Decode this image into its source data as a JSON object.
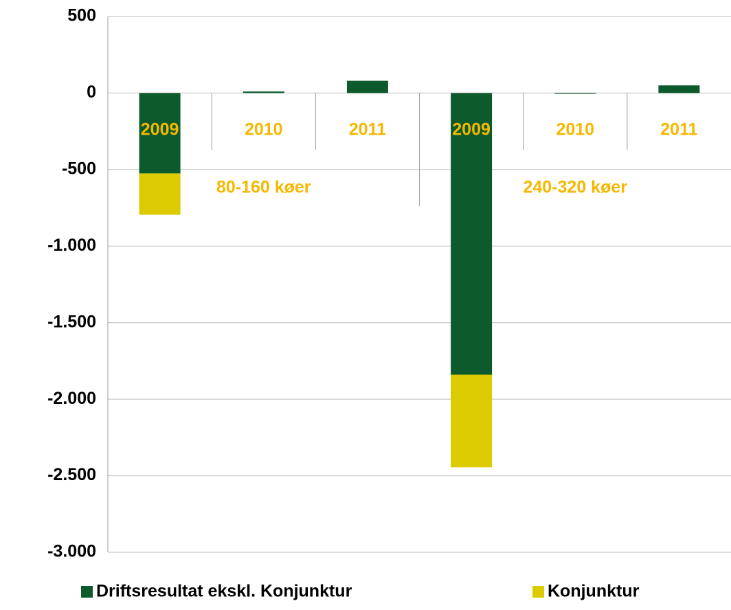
{
  "chart_data": {
    "type": "stacked_bar",
    "categories": [
      "2009",
      "2010",
      "2011",
      "2009",
      "2010",
      "2011"
    ],
    "groups": [
      {
        "name": "80-160 køer"
      },
      {
        "name": "240-320 køer"
      }
    ],
    "series": [
      {
        "name": "Driftsresultat ekskl. Konjunktur",
        "color": "#0d5a2c",
        "values": [
          -525,
          10,
          80,
          -1840,
          -5,
          50
        ]
      },
      {
        "name": "Konjunktur",
        "color": "#dccb00",
        "values": [
          -270,
          0,
          0,
          -605,
          0,
          0
        ]
      }
    ],
    "ylim": [
      -3000,
      500
    ],
    "yticks": [
      500,
      0,
      -500,
      {
        "value": -1000,
        "label": "-1.000"
      },
      {
        "value": -1500,
        "label": "-1.500"
      },
      {
        "value": -2000,
        "label": "-2.000"
      },
      {
        "value": -2500,
        "label": "-2.500"
      },
      {
        "value": -3000,
        "label": "-3.000"
      }
    ],
    "grid": true,
    "legend": "bottom",
    "category_label_color": "#f5b800"
  }
}
